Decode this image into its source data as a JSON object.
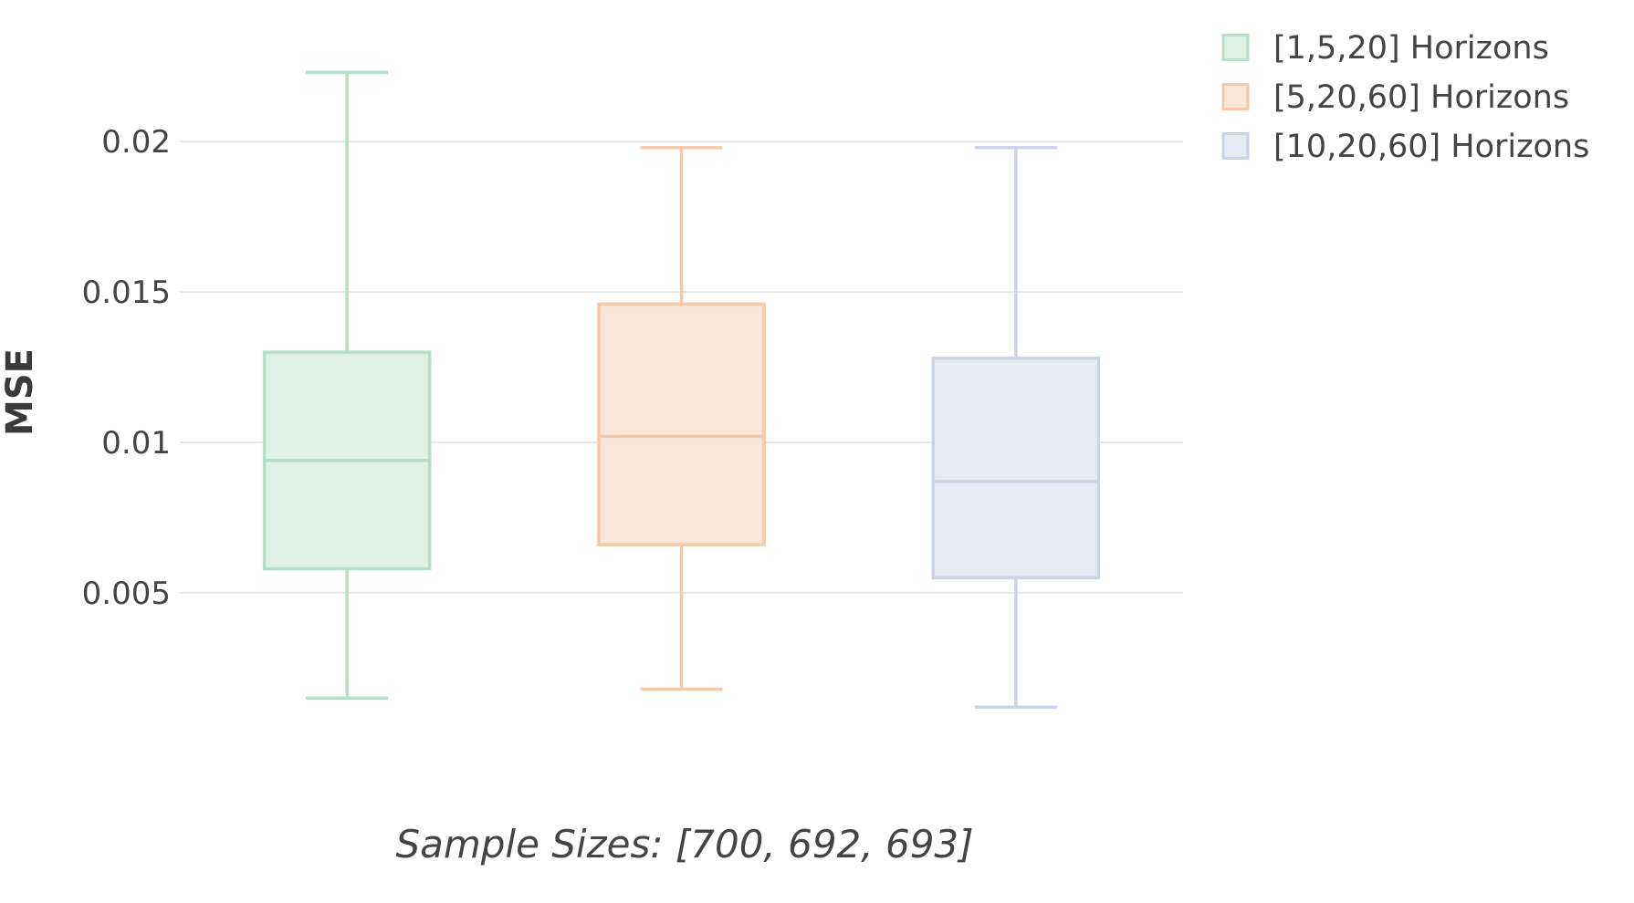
{
  "chart_data": {
    "type": "box",
    "title": "",
    "xlabel": "Sample Sizes: [700, 692, 693]",
    "ylabel": "MSE",
    "ylim": [
      0.00045,
      0.0241
    ],
    "yticks": [
      0.005,
      0.01,
      0.015,
      0.02
    ],
    "ytick_labels": [
      "0.005",
      "0.01",
      "0.015",
      "0.02"
    ],
    "grid": true,
    "legend_position": "top-right",
    "series": [
      {
        "name": "[1,5,20] Horizons",
        "color": "#b5dfc7",
        "fill": "#dff0e6",
        "min": 0.0015,
        "q1": 0.0058,
        "median": 0.0094,
        "q3": 0.013,
        "max": 0.0223
      },
      {
        "name": "[5,20,60] Horizons",
        "color": "#f5c9a9",
        "fill": "#fae6d8",
        "min": 0.0018,
        "q1": 0.0066,
        "median": 0.0102,
        "q3": 0.0146,
        "max": 0.0198
      },
      {
        "name": "[10,20,60] Horizons",
        "color": "#ccd3e6",
        "fill": "#e7ebf4",
        "min": 0.0012,
        "q1": 0.0055,
        "median": 0.0087,
        "q3": 0.0128,
        "max": 0.0198
      }
    ]
  }
}
